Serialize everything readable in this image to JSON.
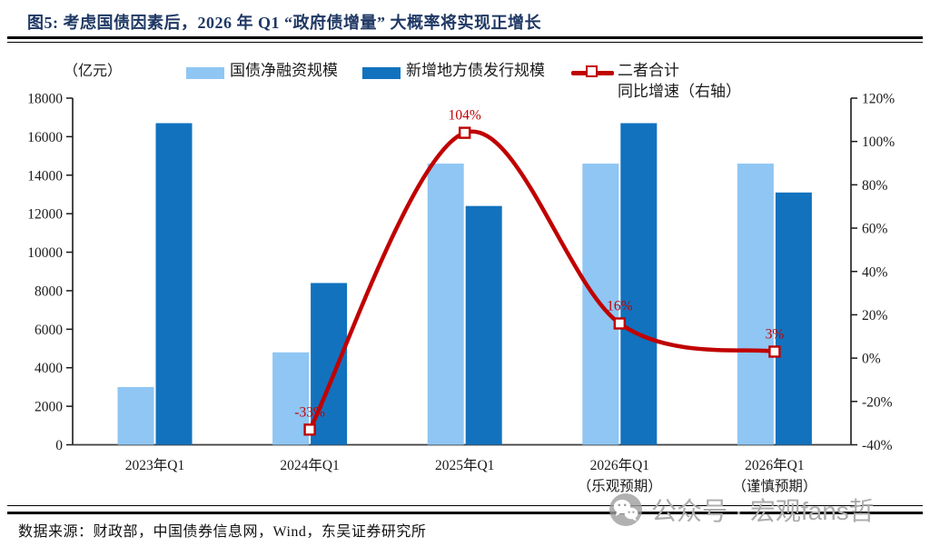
{
  "title": "图5:  考虑国债因素后，2026 年 Q1 “政府债增量” 大概率将实现正增长",
  "axis_unit_label": "（亿元）",
  "legend": {
    "bar1_label": "国债净融资规模",
    "bar2_label": "新增地方债发行规模",
    "line_label_line1": "二者合计",
    "line_label_line2": "同比增速（右轴）"
  },
  "footer": {
    "source": "数据来源：财政部，中国债券信息网，Wind，东吴证券研究所"
  },
  "watermark": {
    "label": "公众号 · 宏观fans哲",
    "icon": "wechat-icon"
  },
  "colors": {
    "title": "#1F3864",
    "bar1": "#8FC6F3",
    "bar2": "#1272BE",
    "line": "#C00000",
    "axis": "#1A1A1A",
    "watermark": "#ABABAB"
  },
  "chart_data": {
    "type": "combo_bar_line",
    "title": "考虑国债因素后，2026年Q1“政府债增量”大概率将实现正增长",
    "categories": [
      "2023年Q1",
      "2024年Q1",
      "2025年Q1",
      "2026年Q1",
      "2026年Q1"
    ],
    "category_sublabels": [
      "",
      "",
      "",
      "（乐观预期）",
      "（谨慎预期）"
    ],
    "series": [
      {
        "name": "国债净融资规模",
        "type": "bar",
        "axis": "left",
        "color": "#8FC6F3",
        "values": [
          3000,
          4800,
          14600,
          14600,
          14600
        ]
      },
      {
        "name": "新增地方债发行规模",
        "type": "bar",
        "axis": "left",
        "color": "#1272BE",
        "values": [
          16700,
          8400,
          12400,
          16700,
          13100
        ]
      },
      {
        "name": "二者合计同比增速（右轴）",
        "type": "line",
        "axis": "right",
        "color": "#C00000",
        "values": [
          null,
          -33,
          104,
          16,
          3
        ],
        "point_labels": [
          "",
          "-33%",
          "104%",
          "16%",
          "3%"
        ]
      }
    ],
    "left_axis": {
      "title": "（亿元）",
      "min": 0,
      "max": 18000,
      "step": 2000
    },
    "right_axis": {
      "min": -40,
      "max": 120,
      "step": 20,
      "suffix": "%"
    },
    "grid": false,
    "legend_position": "top"
  }
}
